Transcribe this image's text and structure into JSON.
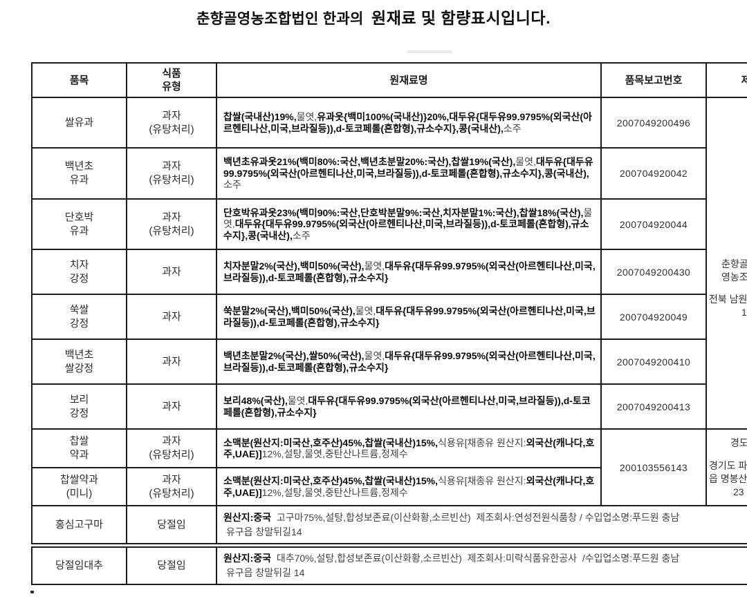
{
  "title": {
    "part1": "춘향골영농조합법인 한과의",
    "part2": "원재료 및 함량표시입니다."
  },
  "table": {
    "headers": {
      "item": "품목",
      "type": "식품\n유형",
      "ingredients": "원재료명",
      "report_no": "품목보고번호",
      "maker": "제"
    },
    "rows": [
      {
        "item": "쌀유과",
        "type": "과자\n(유탕처리)",
        "report_no": "2007049200496",
        "ingredients": [
          {
            "t": "찹쌀(국내산)19%,",
            "b": true
          },
          {
            "t": "물엿,",
            "b": false
          },
          {
            "t": "유과옷{백미100%(국내산)}20%,대두유{대두유99.9795%(외국산(아르헨티나산,미국,브라질등)),d-토코페롤(혼합형),규소수지},콩(국내산),",
            "b": true
          },
          {
            "t": "소주",
            "b": false
          }
        ]
      },
      {
        "item": "백년초\n유과",
        "type": "과자\n(유탕처리)",
        "report_no": "200704920042",
        "ingredients": [
          {
            "t": "백년초유과옷21%(백미80%:국산,백년초분말20%:국산),찹쌀19%(국산),",
            "b": true
          },
          {
            "t": "물엿,",
            "b": false
          },
          {
            "t": "대두유{대두유99.9795%(외국산(아르헨티나산,미국,브라질등)),d-토코페롤(혼합형),규소수지},콩(국내산),",
            "b": true
          },
          {
            "t": "소주",
            "b": false
          }
        ]
      },
      {
        "item": "단호박\n유과",
        "type": "과자\n(유탕처리)",
        "report_no": "200704920044",
        "ingredients": [
          {
            "t": "단호박유과옷23%(백미90%:국산,단호박분말9%:국산,치자분말1%:국산),찹쌀18%(국산),",
            "b": true
          },
          {
            "t": "물엿,",
            "b": false
          },
          {
            "t": "대두유{대두유99.9795%(외국산(아르헨티나산,미국,브라질등)),d-토코페롤(혼합형),규소수지},콩(국내산),",
            "b": true
          },
          {
            "t": "소주",
            "b": false
          }
        ]
      },
      {
        "item": "치자\n강정",
        "type": "과자",
        "report_no": "2007049200430",
        "ingredients": [
          {
            "t": "치자분말2%(국산),백미50%(국산),",
            "b": true
          },
          {
            "t": "물엿,",
            "b": false
          },
          {
            "t": "대두유{대두유99.9795%(외국산(아르헨티나산,미국,브라질등)),d-토코페롤(혼합형),규소수지}",
            "b": true
          }
        ]
      },
      {
        "item": "쑥쌀\n강정",
        "type": "과자",
        "report_no": "200704920049",
        "ingredients": [
          {
            "t": "쑥분말2%(국산),백미50%(국산),",
            "b": true
          },
          {
            "t": "물엿,",
            "b": false
          },
          {
            "t": "대두유{대두유99.9795%(외국산(아르헨티나산,미국,브라질등)),d-토코페롤(혼합형),규소수지}",
            "b": true
          }
        ]
      },
      {
        "item": "백년초\n쌀강정",
        "type": "과자",
        "report_no": "2007049200410",
        "ingredients": [
          {
            "t": "백년초분말2%(국산),쌀50%(국산),",
            "b": true
          },
          {
            "t": "물엿,",
            "b": false
          },
          {
            "t": "대두유{대두유99.9795%(외국산(아르헨티나산,미국,브라질등)),d-토코페롤(혼합형),규소수지}",
            "b": true
          }
        ]
      },
      {
        "item": "보리\n강정",
        "type": "과자",
        "report_no": "2007049200413",
        "ingredients": [
          {
            "t": "보리48%(국산),",
            "b": true
          },
          {
            "t": "물엿,",
            "b": false
          },
          {
            "t": "대두유{대두유99.9795%(외국산(아르헨티나산,미국,브라질등)),d-토코페롤(혼합형),규소수지}",
            "b": true
          }
        ]
      },
      {
        "item": "찹쌀\n약과",
        "type": "과자\n(유탕처리)",
        "report_no": "200103556143",
        "ingredients": [
          {
            "t": "소맥분(원산지:미국산,호주산)45%,찹쌀(국내산)15%,",
            "b": true
          },
          {
            "t": "식용유[채종유 원산지:",
            "b": false
          },
          {
            "t": "외국산(캐나다,호주,UAE)]",
            "b": true
          },
          {
            "t": "12%,설탕,물엿,중탄산나트륨,정제수",
            "b": false
          }
        ]
      },
      {
        "item": "찹쌀약과\n(미니)",
        "type": "과자\n(유탕처리)",
        "report_no": "",
        "ingredients": [
          {
            "t": "소맥분(원산지:미국산,호주산)45%,찹쌀(국내산)15%,",
            "b": true
          },
          {
            "t": "식용유[채종유 원산지:",
            "b": false
          },
          {
            "t": "외국산(캐나다,호주,UAE)]",
            "b": true
          },
          {
            "t": "12%,설탕,물엿,중탄산나트륨,정제수",
            "b": false
          }
        ]
      },
      {
        "item": "홍심고구마",
        "type": "당절임",
        "report_no": "",
        "ingredients": [
          {
            "t": "원산지:중국",
            "b": true
          },
          {
            "t": "  고구마75%,설탕,합성보존료(이산화황,소르빈산)  제조회사:연성전원식품창 / 수입업소명:푸드원 충남\n 유구읍 창말뒤길14",
            "b": false
          }
        ]
      },
      {
        "item": "당절임대추",
        "type": "당절임",
        "report_no": "",
        "ingredients": [
          {
            "t": "원산지:중국",
            "b": true
          },
          {
            "t": "  대추70%,설탕,합성보존료(이산화황,소르빈산)  제조회사:미락식품유한공사  /수입업소명:푸드원 충남\n 유구읍 창말뒤길 14",
            "b": false
          }
        ]
      }
    ],
    "maker_block_a": {
      "lines": [
        "춘향골",
        "영농조",
        "",
        "전북 남원",
        "1"
      ]
    },
    "maker_block_b": {
      "lines": [
        "경도",
        "",
        "경기도 파",
        "읍 명봉산",
        "23"
      ]
    }
  }
}
